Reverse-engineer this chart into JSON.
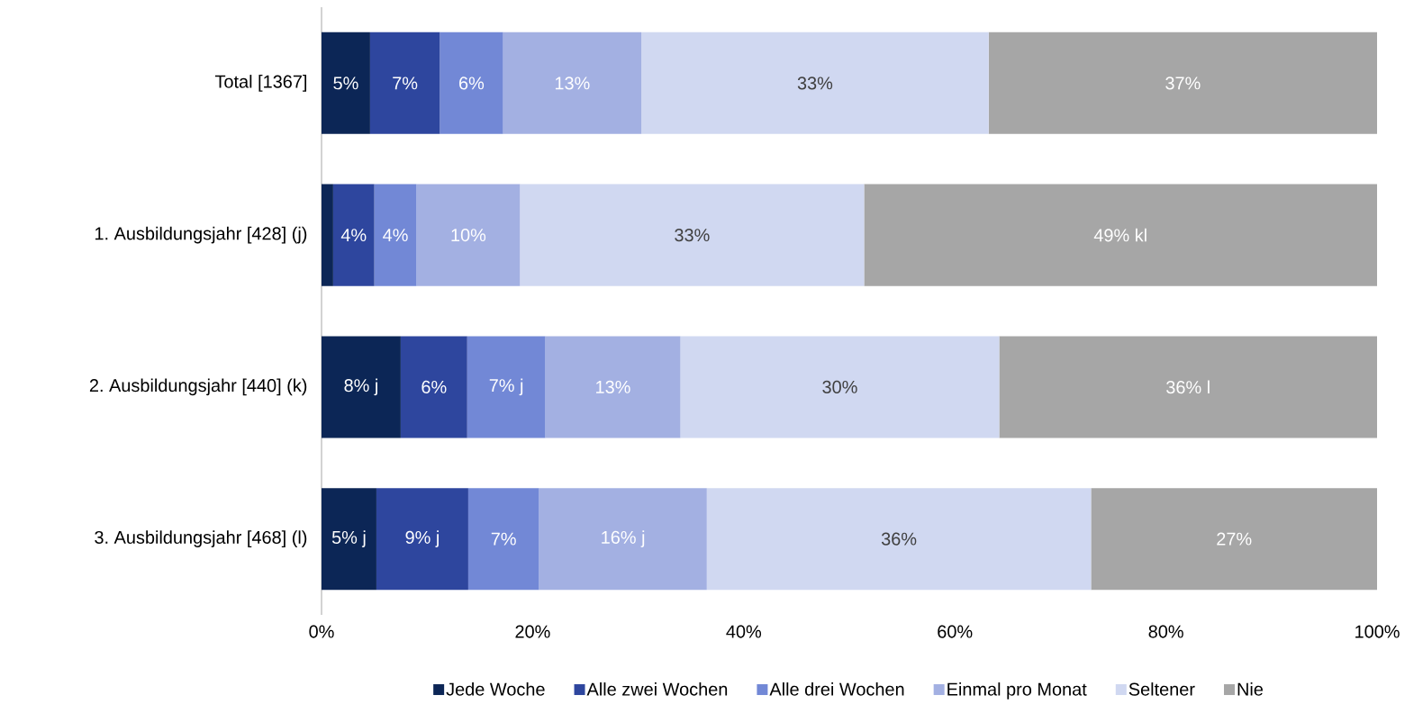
{
  "chart_data": {
    "type": "bar",
    "orientation": "horizontal",
    "stacked": true,
    "categories": [
      "Total [1367]",
      "1. Ausbildungsjahr [428] (j)",
      "2. Ausbildungsjahr [440] (k)",
      "3. Ausbildungsjahr [468] (l)"
    ],
    "series": [
      {
        "name": "Jede Woche",
        "color": "#0c2656",
        "values": [
          4.6,
          1.1,
          7.5,
          5.2
        ],
        "value_labels": [
          "5%",
          null,
          "8% j",
          "5% j"
        ]
      },
      {
        "name": "Alle zwei Wochen",
        "color": "#2e469e",
        "values": [
          6.6,
          3.9,
          6.3,
          8.7
        ],
        "value_labels": [
          "7%",
          "4%",
          "6%",
          "9% j"
        ]
      },
      {
        "name": "Alle drei Wochen",
        "color": "#7288d6",
        "values": [
          6.0,
          4.0,
          7.4,
          6.7
        ],
        "value_labels": [
          "6%",
          "4%",
          "7% j",
          "7%"
        ]
      },
      {
        "name": "Einmal pro Monat",
        "color": "#a3b0e2",
        "values": [
          13.1,
          9.8,
          12.8,
          15.9
        ],
        "value_labels": [
          "13%",
          "10%",
          "13%",
          "16% j"
        ]
      },
      {
        "name": "Seltener",
        "color": "#d0d8f1",
        "values": [
          32.9,
          32.6,
          30.2,
          36.4
        ],
        "value_labels": [
          "33%",
          "33%",
          "30%",
          "36%"
        ]
      },
      {
        "name": "Nie",
        "color": "#a6a6a6",
        "values": [
          36.8,
          48.6,
          35.8,
          27.1
        ],
        "value_labels": [
          "37%",
          "49% kl",
          "36% l",
          "27%"
        ]
      }
    ],
    "xlim": [
      0,
      100
    ],
    "xticks": [
      {
        "value": 0,
        "label": "0%"
      },
      {
        "value": 20,
        "label": "20%"
      },
      {
        "value": 40,
        "label": "40%"
      },
      {
        "value": 60,
        "label": "60%"
      },
      {
        "value": 80,
        "label": "80%"
      },
      {
        "value": 100,
        "label": "100%"
      }
    ],
    "grid": false,
    "legend": "bottom"
  }
}
